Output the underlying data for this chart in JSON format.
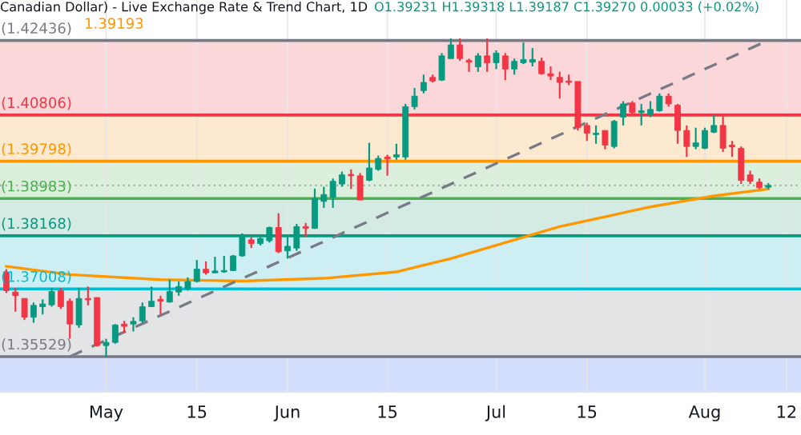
{
  "chart_data": {
    "type": "candlestick",
    "title": "Canadian Dollar) - Live Exchange Rate & Trend Chart, 1D",
    "subtitle": "O1.39231 H1.39318 L1.39187 C1.39270 0.00033 (+0.02%)",
    "categories": [
      null,
      null,
      null,
      null,
      null,
      null,
      null,
      null,
      null,
      null,
      null,
      "May",
      null,
      null,
      null,
      null,
      null,
      null,
      null,
      null,
      null,
      "15",
      null,
      null,
      null,
      null,
      null,
      null,
      null,
      null,
      null,
      "Jun",
      null,
      null,
      null,
      null,
      null,
      null,
      null,
      null,
      null,
      null,
      "15",
      null,
      null,
      null,
      null,
      null,
      null,
      null,
      null,
      null,
      null,
      null,
      "Jul",
      null,
      null,
      null,
      null,
      null,
      null,
      null,
      null,
      null,
      "15",
      null,
      null,
      null,
      null,
      null,
      null,
      null,
      null,
      null,
      null,
      null,
      null,
      "Aug",
      null,
      null,
      null,
      null,
      null,
      null,
      null,
      null,
      "12"
    ],
    "ohlc": [
      [
        1.3738,
        1.3744,
        1.3692,
        1.3697
      ],
      [
        1.3694,
        1.3703,
        1.3651,
        1.3686
      ],
      [
        1.368,
        1.368,
        1.3633,
        1.3639
      ],
      [
        1.3639,
        1.3671,
        1.3627,
        1.3665
      ],
      [
        1.3662,
        1.3678,
        1.3645,
        1.3668
      ],
      [
        1.3666,
        1.3703,
        1.3662,
        1.3695
      ],
      [
        1.3697,
        1.3703,
        1.3657,
        1.3662
      ],
      [
        1.3674,
        1.368,
        1.3592,
        1.3624
      ],
      [
        1.3622,
        1.3703,
        1.3616,
        1.368
      ],
      [
        1.368,
        1.3706,
        1.3665,
        1.3677
      ],
      [
        1.3682,
        1.3682,
        1.3575,
        1.3577
      ],
      [
        1.3577,
        1.3592,
        1.3552,
        1.3584
      ],
      [
        1.3584,
        1.3624,
        1.3581,
        1.3622
      ],
      [
        1.3624,
        1.3631,
        1.3604,
        1.3619
      ],
      [
        1.3624,
        1.3639,
        1.3608,
        1.363
      ],
      [
        1.3631,
        1.3671,
        1.3627,
        1.3662
      ],
      [
        1.3662,
        1.3706,
        1.3662,
        1.3674
      ],
      [
        1.3678,
        1.3686,
        1.3645,
        1.3674
      ],
      [
        1.3672,
        1.3721,
        1.3671,
        1.3695
      ],
      [
        1.3694,
        1.3717,
        1.3686,
        1.3706
      ],
      [
        1.3701,
        1.3726,
        1.3697,
        1.3717
      ],
      [
        1.3717,
        1.3764,
        1.3715,
        1.3744
      ],
      [
        1.3744,
        1.3761,
        1.3732,
        1.3736
      ],
      [
        1.3736,
        1.3771,
        1.3735,
        1.374
      ],
      [
        1.3738,
        1.3773,
        1.3736,
        1.3741
      ],
      [
        1.3741,
        1.3775,
        1.374,
        1.3773
      ],
      [
        1.3773,
        1.3822,
        1.3771,
        1.3814
      ],
      [
        1.3808,
        1.3814,
        1.379,
        1.38
      ],
      [
        1.38,
        1.3814,
        1.3796,
        1.3811
      ],
      [
        1.3806,
        1.3837,
        1.3802,
        1.3835
      ],
      [
        1.3835,
        1.3866,
        1.3779,
        1.3782
      ],
      [
        1.3784,
        1.3814,
        1.3767,
        1.3794
      ],
      [
        1.379,
        1.3843,
        1.3784,
        1.3837
      ],
      [
        1.3837,
        1.3845,
        1.3814,
        1.3833
      ],
      [
        1.3833,
        1.392,
        1.3832,
        1.3899
      ],
      [
        1.3892,
        1.3924,
        1.3878,
        1.3907
      ],
      [
        1.3901,
        1.3942,
        1.3878,
        1.3936
      ],
      [
        1.393,
        1.3957,
        1.3924,
        1.395
      ],
      [
        1.3951,
        1.3962,
        1.3919,
        1.3948
      ],
      [
        1.3948,
        1.3954,
        1.3895,
        1.3895
      ],
      [
        1.3938,
        1.402,
        1.3936,
        1.3965
      ],
      [
        1.3962,
        1.3992,
        1.3959,
        1.3986
      ],
      [
        1.3989,
        1.3994,
        1.3948,
        1.3985
      ],
      [
        1.3989,
        1.4018,
        1.3983,
        1.3994
      ],
      [
        1.3989,
        1.4105,
        1.3983,
        1.4099
      ],
      [
        1.4099,
        1.414,
        1.4093,
        1.4122
      ],
      [
        1.4134,
        1.4169,
        1.4128,
        1.4152
      ],
      [
        1.4163,
        1.4169,
        1.4152,
        1.4155
      ],
      [
        1.4157,
        1.4216,
        1.4155,
        1.421
      ],
      [
        1.4204,
        1.4248,
        1.4204,
        1.4234
      ],
      [
        1.4234,
        1.4248,
        1.4199,
        1.4204
      ],
      [
        1.42,
        1.4204,
        1.4175,
        1.4196
      ],
      [
        1.4186,
        1.4216,
        1.4175,
        1.421
      ],
      [
        1.421,
        1.4248,
        1.4175,
        1.4195
      ],
      [
        1.4195,
        1.4222,
        1.4181,
        1.4216
      ],
      [
        1.421,
        1.4216,
        1.4157,
        1.4181
      ],
      [
        1.4181,
        1.4204,
        1.4169,
        1.4198
      ],
      [
        1.4195,
        1.4239,
        1.4192,
        1.4202
      ],
      [
        1.4196,
        1.4227,
        1.4187,
        1.4202
      ],
      [
        1.4198,
        1.4206,
        1.4169,
        1.4171
      ],
      [
        1.4171,
        1.4187,
        1.4157,
        1.4166
      ],
      [
        1.4163,
        1.4175,
        1.4117,
        1.4152
      ],
      [
        1.4155,
        1.4169,
        1.4146,
        1.4152
      ],
      [
        1.4154,
        1.4154,
        1.4047,
        1.4053
      ],
      [
        1.4058,
        1.4064,
        1.4024,
        1.4041
      ],
      [
        1.4038,
        1.4058,
        1.4018,
        1.4041
      ],
      [
        1.4047,
        1.4047,
        1.4006,
        1.4015
      ],
      [
        1.4012,
        1.407,
        1.4008,
        1.4067
      ],
      [
        1.4076,
        1.4111,
        1.4058,
        1.4105
      ],
      [
        1.4107,
        1.4111,
        1.4082,
        1.4086
      ],
      [
        1.4086,
        1.4105,
        1.4058,
        1.409
      ],
      [
        1.4082,
        1.4111,
        1.4076,
        1.4093
      ],
      [
        1.409,
        1.4128,
        1.4088,
        1.4122
      ],
      [
        1.4122,
        1.4128,
        1.4099,
        1.4105
      ],
      [
        1.4102,
        1.4105,
        1.4018,
        1.4047
      ],
      [
        1.4047,
        1.4058,
        1.3989,
        1.4012
      ],
      [
        1.4012,
        1.4053,
        1.4006,
        1.402
      ],
      [
        1.4008,
        1.4053,
        1.4006,
        1.4047
      ],
      [
        1.4043,
        1.4082,
        1.4041,
        1.4058
      ],
      [
        1.4058,
        1.4078,
        1.4,
        1.4008
      ],
      [
        1.4015,
        1.4024,
        1.3989,
        1.4011
      ],
      [
        1.4008,
        1.4012,
        1.393,
        1.3938
      ],
      [
        1.395,
        1.3959,
        1.393,
        1.3936
      ],
      [
        1.3934,
        1.3942,
        1.3919,
        1.3922
      ],
      [
        1.3923,
        1.3932,
        1.3919,
        1.3927
      ],
      null,
      null
    ],
    "series": [
      {
        "type": "line",
        "color": "#ff9800",
        "line_style": "solid",
        "values": [
          1.375,
          null,
          null,
          null,
          null,
          null,
          null,
          1.3732,
          null,
          null,
          null,
          null,
          null,
          null,
          null,
          null,
          null,
          1.3721,
          null,
          null,
          null,
          null,
          null,
          null,
          null,
          null,
          1.3718,
          null,
          null,
          null,
          null,
          null,
          null,
          null,
          null,
          1.3724,
          null,
          null,
          null,
          null,
          null,
          null,
          null,
          1.3738,
          null,
          null,
          null,
          null,
          null,
          1.3767,
          null,
          null,
          null,
          null,
          null,
          1.3802,
          null,
          null,
          null,
          null,
          null,
          1.3837,
          null,
          null,
          null,
          null,
          null,
          null,
          null,
          null,
          null,
          1.388,
          null,
          null,
          null,
          null,
          null,
          null,
          1.3904,
          null,
          null,
          null,
          null,
          null,
          1.3919,
          null,
          null
        ]
      },
      {
        "type": "line",
        "color": "#787b86",
        "line_style": "dashed",
        "values": [
          null,
          null,
          null,
          null,
          null,
          null,
          null,
          1.3553,
          null,
          null,
          null,
          null,
          null,
          null,
          null,
          null,
          null,
          null,
          null,
          null,
          null,
          null,
          null,
          null,
          null,
          null,
          null,
          null,
          null,
          null,
          null,
          null,
          null,
          null,
          null,
          null,
          null,
          null,
          null,
          null,
          null,
          null,
          null,
          null,
          null,
          null,
          null,
          null,
          null,
          null,
          null,
          null,
          null,
          null,
          null,
          null,
          null,
          null,
          null,
          null,
          null,
          null,
          null,
          null,
          null,
          null,
          null,
          null,
          null,
          null,
          null,
          null,
          null,
          null,
          null,
          null,
          null,
          null,
          null,
          null,
          null,
          null,
          null,
          null,
          1.4244,
          null,
          null
        ]
      }
    ],
    "bands": [
      {
        "axis": "y",
        "from": 1.40806,
        "to": 1.42436,
        "color": "#fbd7da"
      },
      {
        "axis": "y",
        "from": 1.39798,
        "to": 1.40806,
        "color": "#fde9cf"
      },
      {
        "axis": "y",
        "from": 1.38983,
        "to": 1.39798,
        "color": "#dcefdd"
      },
      {
        "axis": "y",
        "from": 1.38168,
        "to": 1.38983,
        "color": "#d3ebe3"
      },
      {
        "axis": "y",
        "from": 1.37008,
        "to": 1.38168,
        "color": "#cdeff3"
      },
      {
        "axis": "y",
        "from": 1.35529,
        "to": 1.37008,
        "color": "#e3e4e6"
      },
      {
        "axis": "y",
        "from": 1.3476,
        "to": 1.35529,
        "color": "#d3defc"
      }
    ],
    "ref_lines": [
      {
        "axis": "y",
        "value": 1.42436,
        "label": "(1.42436)",
        "color": "#787b86",
        "line_style": "solid"
      },
      {
        "axis": "y",
        "value": 1.40806,
        "label": "(1.40806)",
        "color": "#f23645",
        "line_style": "solid"
      },
      {
        "axis": "y",
        "value": 1.39798,
        "label": "(1.39798)",
        "color": "#ff9800",
        "line_style": "solid"
      },
      {
        "axis": "y",
        "value": 1.38983,
        "label": "(1.38983)",
        "color": "#4caf50",
        "line_style": "solid"
      },
      {
        "axis": "y",
        "value": 1.38168,
        "label": "(1.38168)",
        "color": "#089981",
        "line_style": "solid"
      },
      {
        "axis": "y",
        "value": 1.37008,
        "label": "(1.37008)",
        "color": "#00bcd4",
        "line_style": "solid"
      },
      {
        "axis": "y",
        "value": 1.35529,
        "label": "(1.35529)",
        "color": "#787b86",
        "line_style": "solid"
      },
      {
        "axis": "y",
        "value": 1.3927,
        "color": "#9db5a5",
        "line_style": "dotted"
      }
    ],
    "annotations": [
      "1.39193"
    ],
    "ylim": [
      1.3476,
      1.4332
    ],
    "tick_labels": "x",
    "grid": "x",
    "legend": false
  }
}
